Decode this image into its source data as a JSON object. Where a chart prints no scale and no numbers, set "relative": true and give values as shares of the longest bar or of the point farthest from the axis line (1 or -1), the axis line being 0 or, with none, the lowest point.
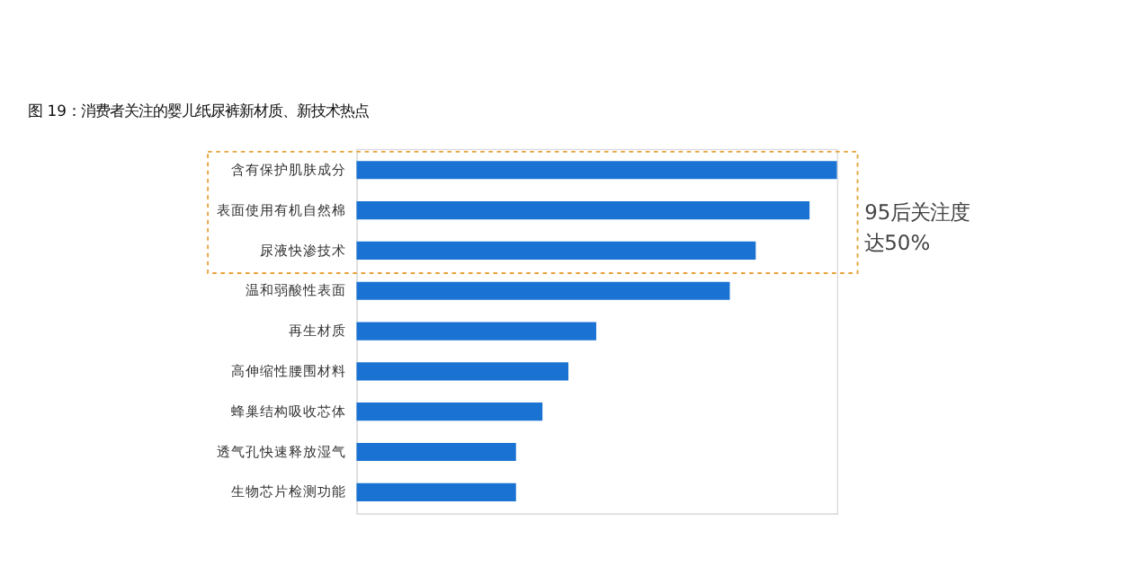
{
  "chart_data": {
    "type": "bar",
    "orientation": "horizontal",
    "relative": true,
    "title": "图 19：消费者关注的婴儿纸尿裤新材质、新技术热点",
    "categories": [
      "含有保护肌肤成分",
      "表面使用有机自然棉",
      "尿液快渗技术",
      "温和弱酸性表面",
      "再生材质",
      "高伸缩性腰围材料",
      "蜂巢结构吸收芯体",
      "透气孔快速释放湿气",
      "生物芯片检测功能"
    ],
    "values": [
      1,
      0.943,
      0.831,
      0.777,
      0.499,
      0.441,
      0.387,
      0.332,
      0.332
    ],
    "color": "#1a73d2",
    "grid": false,
    "annotations": [
      "95后关注度达50%"
    ]
  }
}
